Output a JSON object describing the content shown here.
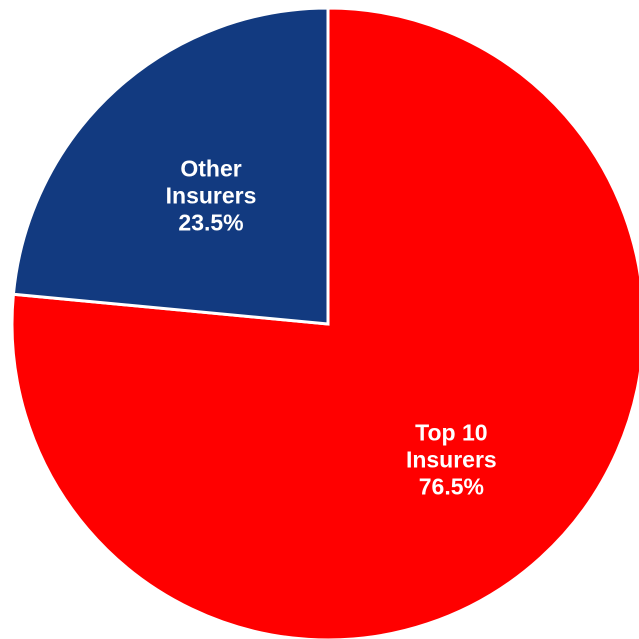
{
  "chart_data": {
    "type": "pie",
    "title": "",
    "start_angle_deg": 0,
    "direction": "clockwise",
    "slices": [
      {
        "name": "Top 10 Insurers",
        "label_lines": [
          "Top 10",
          "Insurers",
          "76.5%"
        ],
        "value": 76.5,
        "color": "#ff0000"
      },
      {
        "name": "Other Insurers",
        "label_lines": [
          "Other",
          "Insurers",
          "23.5%"
        ],
        "value": 23.5,
        "color": "#123a80"
      }
    ]
  }
}
